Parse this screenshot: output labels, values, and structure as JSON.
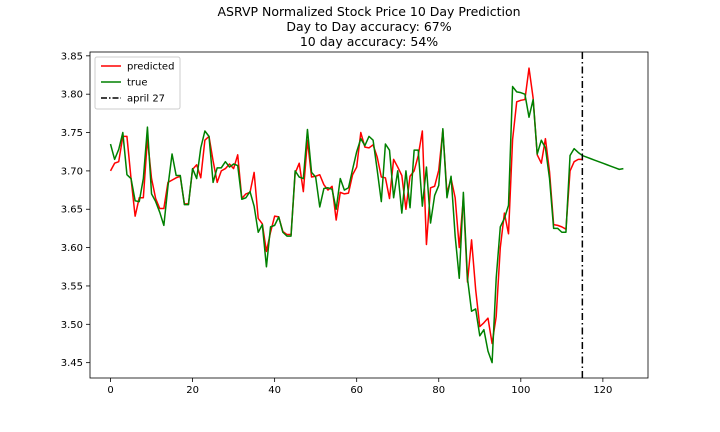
{
  "chart_data": {
    "type": "line",
    "title": [
      "ASRVP Normalized Stock Price 10 Day Prediction",
      "Day to Day accuracy: 67%",
      "10 day accuracy: 54%"
    ],
    "xlabel": "",
    "ylabel": "",
    "xlim": [
      -5,
      131
    ],
    "ylim": [
      3.43,
      3.855
    ],
    "xticks": [
      0,
      20,
      40,
      60,
      80,
      100,
      120
    ],
    "yticks": [
      3.45,
      3.5,
      3.55,
      3.6,
      3.65,
      3.7,
      3.75,
      3.8,
      3.85
    ],
    "ytick_labels": [
      "3.45",
      "3.50",
      "3.55",
      "3.60",
      "3.65",
      "3.70",
      "3.75",
      "3.80",
      "3.85"
    ],
    "grid": false,
    "legend_position": "upper-left",
    "series": [
      {
        "name": "predicted",
        "color": "#ff0000",
        "x": [
          0,
          1,
          2,
          3,
          4,
          5,
          6,
          7,
          8,
          9,
          10,
          11,
          12,
          13,
          14,
          15,
          16,
          17,
          18,
          19,
          20,
          21,
          22,
          23,
          24,
          25,
          26,
          27,
          28,
          29,
          30,
          31,
          32,
          33,
          34,
          35,
          36,
          37,
          38,
          39,
          40,
          41,
          42,
          43,
          44,
          45,
          46,
          47,
          48,
          49,
          50,
          51,
          52,
          53,
          54,
          55,
          56,
          57,
          58,
          59,
          60,
          61,
          62,
          63,
          64,
          65,
          66,
          67,
          68,
          69,
          70,
          71,
          72,
          73,
          74,
          75,
          76,
          77,
          78,
          79,
          80,
          81,
          82,
          83,
          84,
          85,
          86,
          87,
          88,
          89,
          90,
          91,
          92,
          93,
          94,
          95,
          96,
          97,
          98,
          99,
          100,
          101,
          102,
          103,
          104,
          105,
          106,
          107,
          108,
          109,
          110,
          111,
          112,
          113,
          114,
          115
        ],
        "values": [
          3.7,
          3.71,
          3.712,
          3.745,
          3.745,
          3.69,
          3.641,
          3.665,
          3.665,
          3.742,
          3.69,
          3.664,
          3.651,
          3.651,
          3.685,
          3.688,
          3.691,
          3.693,
          3.657,
          3.657,
          3.702,
          3.708,
          3.691,
          3.74,
          3.745,
          3.713,
          3.685,
          3.7,
          3.703,
          3.709,
          3.703,
          3.721,
          3.664,
          3.67,
          3.672,
          3.698,
          3.638,
          3.631,
          3.595,
          3.62,
          3.641,
          3.64,
          3.621,
          3.617,
          3.617,
          3.697,
          3.71,
          3.673,
          3.74,
          3.692,
          3.693,
          3.695,
          3.682,
          3.675,
          3.68,
          3.636,
          3.672,
          3.67,
          3.671,
          3.695,
          3.705,
          3.75,
          3.731,
          3.73,
          3.734,
          3.718,
          3.692,
          3.691,
          3.664,
          3.715,
          3.705,
          3.694,
          3.65,
          3.693,
          3.7,
          3.72,
          3.752,
          3.604,
          3.678,
          3.68,
          3.701,
          3.753,
          3.671,
          3.69,
          3.665,
          3.6,
          3.665,
          3.555,
          3.61,
          3.545,
          3.497,
          3.502,
          3.508,
          3.475,
          3.51,
          3.6,
          3.645,
          3.618,
          3.741,
          3.79,
          3.792,
          3.793,
          3.834,
          3.795,
          3.721,
          3.71,
          3.742,
          3.699,
          3.63,
          3.629,
          3.627,
          3.624,
          3.7,
          3.712,
          3.715,
          3.715
        ]
      },
      {
        "name": "true",
        "color": "#008000",
        "x": [
          0,
          1,
          2,
          3,
          4,
          5,
          6,
          7,
          8,
          9,
          10,
          11,
          12,
          13,
          14,
          15,
          16,
          17,
          18,
          19,
          20,
          21,
          22,
          23,
          24,
          25,
          26,
          27,
          28,
          29,
          30,
          31,
          32,
          33,
          34,
          35,
          36,
          37,
          38,
          39,
          40,
          41,
          42,
          43,
          44,
          45,
          46,
          47,
          48,
          49,
          50,
          51,
          52,
          53,
          54,
          55,
          56,
          57,
          58,
          59,
          60,
          61,
          62,
          63,
          64,
          65,
          66,
          67,
          68,
          69,
          70,
          71,
          72,
          73,
          74,
          75,
          76,
          77,
          78,
          79,
          80,
          81,
          82,
          83,
          84,
          85,
          86,
          87,
          88,
          89,
          90,
          91,
          92,
          93,
          94,
          95,
          96,
          97,
          98,
          99,
          100,
          101,
          102,
          103,
          104,
          105,
          106,
          107,
          108,
          109,
          110,
          111,
          112,
          113,
          114,
          115,
          116,
          117,
          118,
          119,
          120,
          121,
          122,
          123,
          124,
          125
        ],
        "values": [
          3.735,
          3.715,
          3.728,
          3.75,
          3.695,
          3.69,
          3.661,
          3.66,
          3.69,
          3.757,
          3.67,
          3.66,
          3.646,
          3.629,
          3.68,
          3.722,
          3.694,
          3.694,
          3.656,
          3.656,
          3.703,
          3.69,
          3.73,
          3.752,
          3.745,
          3.685,
          3.704,
          3.704,
          3.712,
          3.705,
          3.709,
          3.707,
          3.663,
          3.665,
          3.673,
          3.654,
          3.62,
          3.63,
          3.575,
          3.627,
          3.629,
          3.64,
          3.62,
          3.615,
          3.615,
          3.7,
          3.692,
          3.69,
          3.754,
          3.698,
          3.692,
          3.653,
          3.677,
          3.678,
          3.676,
          3.65,
          3.69,
          3.675,
          3.678,
          3.702,
          3.725,
          3.742,
          3.733,
          3.745,
          3.74,
          3.701,
          3.66,
          3.735,
          3.727,
          3.665,
          3.7,
          3.645,
          3.7,
          3.652,
          3.727,
          3.727,
          3.654,
          3.705,
          3.632,
          3.668,
          3.681,
          3.755,
          3.665,
          3.693,
          3.615,
          3.56,
          3.672,
          3.56,
          3.517,
          3.52,
          3.485,
          3.493,
          3.465,
          3.45,
          3.56,
          3.627,
          3.638,
          3.655,
          3.81,
          3.803,
          3.802,
          3.8,
          3.77,
          3.793,
          3.722,
          3.74,
          3.73,
          3.69,
          3.625,
          3.625,
          3.62,
          3.62,
          3.72,
          3.729,
          3.724,
          3.72,
          3.718,
          3.716,
          3.714,
          3.712,
          3.71,
          3.708,
          3.706,
          3.704,
          3.702,
          3.703
        ]
      }
    ],
    "vline": {
      "name": "april 27",
      "x": 115,
      "color": "#000000",
      "style": "dash-dot"
    },
    "legend": [
      "predicted",
      "true",
      "april 27"
    ]
  }
}
